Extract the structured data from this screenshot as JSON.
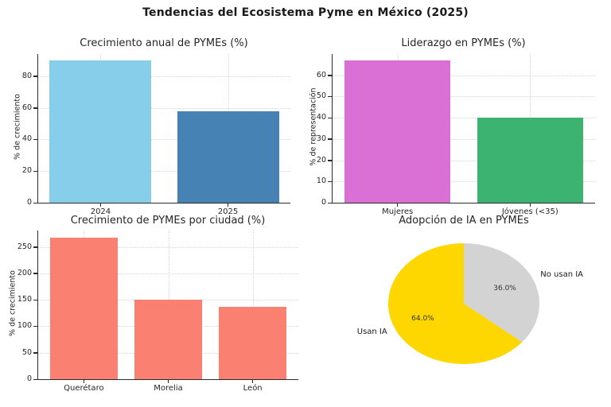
{
  "figure": {
    "title": "Tendencias del Ecosistema Pyme en México (2025)",
    "background": "#ffffff"
  },
  "chart_data": [
    {
      "type": "bar",
      "title": "Crecimiento anual de PYMEs (%)",
      "xlabel": "",
      "ylabel": "% de crecimiento",
      "categories": [
        "2024",
        "2025"
      ],
      "values": [
        90,
        58
      ],
      "colors": [
        "#87CEEB",
        "#4682B4"
      ],
      "yticks": [
        0,
        20,
        40,
        60,
        80
      ],
      "ylim": [
        0,
        94
      ],
      "grid": true,
      "legend": "none"
    },
    {
      "type": "bar",
      "title": "Liderazgo en PYMEs (%)",
      "xlabel": "",
      "ylabel": "% de representación",
      "categories": [
        "Mujeres",
        "Jóvenes (<35)"
      ],
      "values": [
        67,
        40
      ],
      "colors": [
        "#DA70D6",
        "#3CB371"
      ],
      "yticks": [
        0,
        10,
        20,
        30,
        40,
        50,
        60
      ],
      "ylim": [
        0,
        70
      ],
      "grid": true,
      "legend": "none"
    },
    {
      "type": "bar",
      "title": "Crecimiento de PYMEs por ciudad (%)",
      "xlabel": "",
      "ylabel": "% de crecimiento",
      "categories": [
        "Querétaro",
        "Morelia",
        "León"
      ],
      "values": [
        268,
        151,
        137
      ],
      "colors": [
        "#FA8072",
        "#FA8072",
        "#FA8072"
      ],
      "yticks": [
        0,
        50,
        100,
        150,
        200,
        250
      ],
      "ylim": [
        0,
        281
      ],
      "grid": true,
      "legend": "none"
    },
    {
      "type": "pie",
      "title": "Adopción de IA en PYMEs",
      "labels": [
        "Usan IA",
        "No usan IA"
      ],
      "values": [
        64.0,
        36.0
      ],
      "pct_labels": [
        "64.0%",
        "36.0%"
      ],
      "colors": [
        "#FFD700",
        "#D3D3D3"
      ],
      "start_angle": "top",
      "direction": "counterclockwise",
      "legend": "none"
    }
  ]
}
